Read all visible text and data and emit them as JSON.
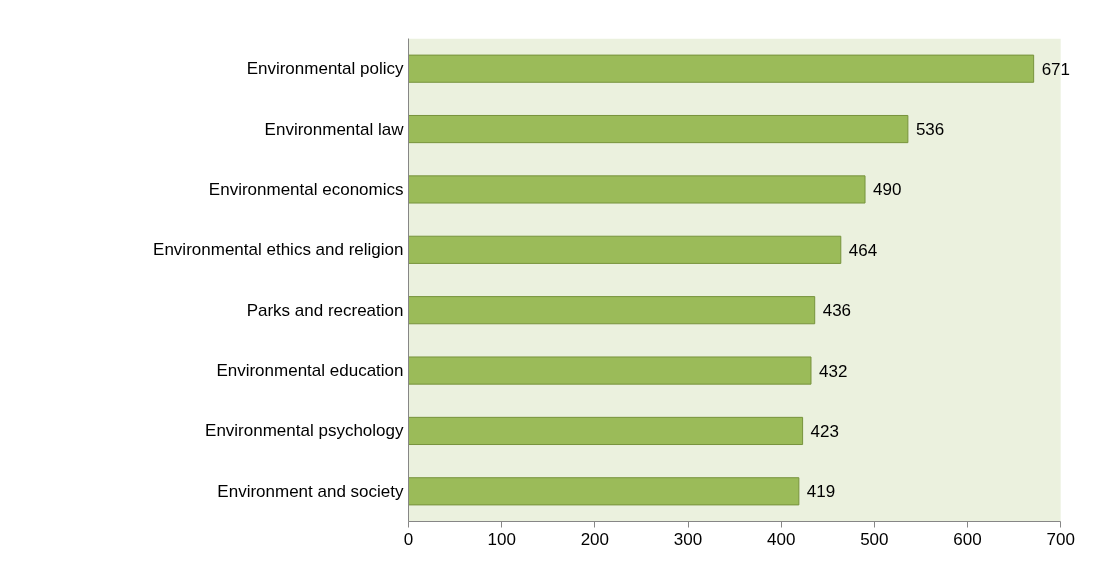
{
  "chart_data": {
    "type": "bar",
    "orientation": "horizontal",
    "categories": [
      "Environmental policy",
      "Environmental law",
      "Environmental economics",
      "Environmental ethics and religion",
      "Parks and recreation",
      "Environmental education",
      "Environmental psychology",
      "Environment and society"
    ],
    "values": [
      671,
      536,
      490,
      464,
      436,
      432,
      423,
      419
    ],
    "color": "#9bbb59",
    "xlim": [
      0,
      700
    ],
    "xticks": [
      0,
      100,
      200,
      300,
      400,
      500,
      600,
      700
    ],
    "data_labels": true
  }
}
